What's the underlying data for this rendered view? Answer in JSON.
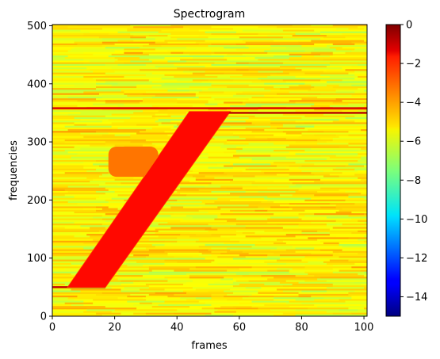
{
  "chart_data": {
    "type": "heatmap",
    "title": "Spectrogram",
    "xlabel": "frames",
    "ylabel": "frequencies",
    "xlim": [
      0,
      101
    ],
    "ylim": [
      0,
      502
    ],
    "xticks": [
      0,
      20,
      40,
      60,
      80,
      100
    ],
    "yticks": [
      0,
      100,
      200,
      300,
      400,
      500
    ],
    "colormap": "jet",
    "color_range": [
      -15,
      0
    ],
    "colorbar_ticks": [
      0,
      -2,
      -4,
      -6,
      -8,
      -10,
      -12,
      -14
    ],
    "background_level": -5.5,
    "features": [
      {
        "kind": "horizontal_line",
        "frequency": 50,
        "x_start": 0,
        "x_end": 17,
        "level": -1.0
      },
      {
        "kind": "diagonal_band",
        "x_left_start": 5,
        "x_left_end": 44,
        "x_right_start": 17,
        "x_right_end": 57,
        "freq_start": 50,
        "freq_end": 352,
        "level": -2.0
      },
      {
        "kind": "blob",
        "x_start": 18,
        "x_end": 34,
        "freq_start": 240,
        "freq_end": 292,
        "level": -3.6
      },
      {
        "kind": "horizontal_line",
        "frequency": 358,
        "x_start": 0,
        "x_end": 101,
        "level": -1.3
      },
      {
        "kind": "horizontal_line",
        "frequency": 350,
        "x_start": 44,
        "x_end": 101,
        "level": -0.8
      }
    ]
  }
}
